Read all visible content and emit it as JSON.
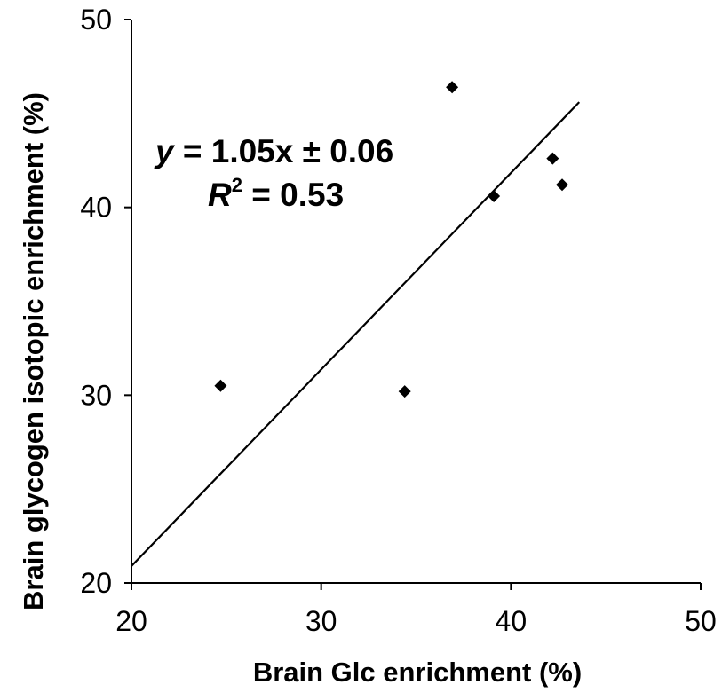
{
  "chart_data": {
    "type": "scatter",
    "xlabel": "Brain Glc enrichment (%)",
    "ylabel": "Brain glycogen isotopic enrichment (%)",
    "xlim": [
      20,
      50
    ],
    "ylim": [
      20,
      50
    ],
    "x_ticks": [
      "20",
      "30",
      "40",
      "50"
    ],
    "y_ticks": [
      "20",
      "30",
      "40",
      "50"
    ],
    "grid": false,
    "legend": "none",
    "marker": "diamond",
    "color": "#000000",
    "points": [
      {
        "x": 24.7,
        "y": 30.5
      },
      {
        "x": 34.4,
        "y": 30.2
      },
      {
        "x": 36.9,
        "y": 46.4
      },
      {
        "x": 39.1,
        "y": 40.6
      },
      {
        "x": 42.2,
        "y": 42.6
      },
      {
        "x": 42.7,
        "y": 41.2
      }
    ],
    "trendline": {
      "x_start": 20,
      "y_start": 20.9,
      "x_end": 43.6,
      "y_end": 45.6
    },
    "annotation": {
      "eq_var": "y",
      "eq_rest": " = 1.05x ± 0.06",
      "r2_var": "R",
      "r2_sup": "2",
      "r2_rest": " = 0.53"
    }
  }
}
